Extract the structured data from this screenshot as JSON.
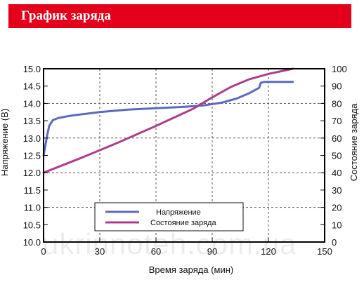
{
  "header": {
    "title": "График заряда"
  },
  "watermark": "ukrinnoteh.com.ua",
  "colors": {
    "header": "#e4001b",
    "voltage": "#5b69c2",
    "charge": "#ac3f8c"
  },
  "chart_data": {
    "type": "line",
    "title": "",
    "xlabel": "Время заряда (мин)",
    "ylabel_left": "Напряжение (В)",
    "ylabel_right": "Состояние заряда",
    "xlim": [
      0,
      150
    ],
    "ylim_left": [
      10.0,
      15.0
    ],
    "ylim_right": [
      0,
      100
    ],
    "grid": true,
    "legend_position": "bottom-center",
    "x_ticks": [
      "0",
      "30",
      "60",
      "90",
      "120",
      "150"
    ],
    "y_left_ticks": [
      "10.0",
      "10.5",
      "11.0",
      "11.5",
      "12.0",
      "12.5",
      "13.0",
      "13.5",
      "14.0",
      "14.5",
      "15.0"
    ],
    "y_right_ticks": [
      "0",
      "10",
      "20",
      "30",
      "40",
      "50",
      "60",
      "70",
      "80",
      "90",
      "100"
    ],
    "series": [
      {
        "name": "Напряжение",
        "axis": "left",
        "color": "#5b69c2",
        "points": [
          [
            0,
            12.5
          ],
          [
            1,
            12.8
          ],
          [
            2,
            13.1
          ],
          [
            3,
            13.35
          ],
          [
            5,
            13.52
          ],
          [
            8,
            13.58
          ],
          [
            15,
            13.65
          ],
          [
            30,
            13.75
          ],
          [
            45,
            13.82
          ],
          [
            60,
            13.86
          ],
          [
            75,
            13.9
          ],
          [
            85,
            13.94
          ],
          [
            95,
            14.02
          ],
          [
            103,
            14.14
          ],
          [
            110,
            14.3
          ],
          [
            115,
            14.45
          ],
          [
            116,
            14.6
          ],
          [
            118,
            14.62
          ],
          [
            133,
            14.62
          ]
        ]
      },
      {
        "name": "Состояние заряда",
        "axis": "right",
        "color": "#ac3f8c",
        "points": [
          [
            0,
            40
          ],
          [
            20,
            48.5
          ],
          [
            40,
            57.5
          ],
          [
            60,
            67
          ],
          [
            80,
            77
          ],
          [
            90,
            83.5
          ],
          [
            100,
            89.5
          ],
          [
            110,
            94
          ],
          [
            120,
            97
          ],
          [
            133,
            100
          ]
        ]
      }
    ]
  }
}
